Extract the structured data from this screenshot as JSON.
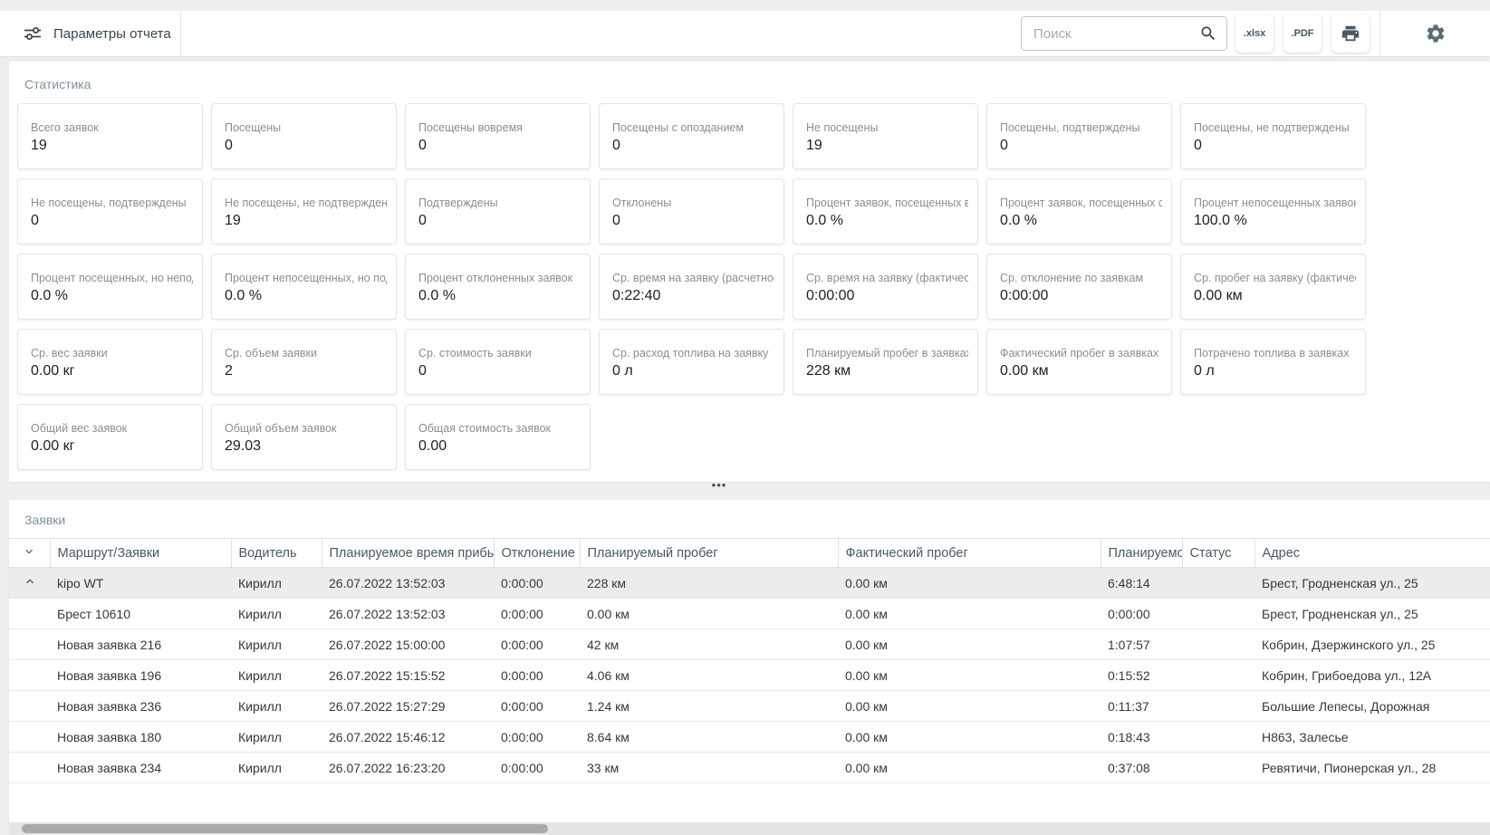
{
  "toolbar": {
    "params_label": "Параметры отчета",
    "search_placeholder": "Поиск",
    "xlsx_label": ".xlsx",
    "pdf_label": ".PDF"
  },
  "stats": {
    "title": "Статистика",
    "cards": [
      {
        "label": "Всего заявок",
        "value": "19"
      },
      {
        "label": "Посещены",
        "value": "0"
      },
      {
        "label": "Посещены вовремя",
        "value": "0"
      },
      {
        "label": "Посещены с опозданием",
        "value": "0"
      },
      {
        "label": "Не посещены",
        "value": "19"
      },
      {
        "label": "Посещены, подтверждены",
        "value": "0"
      },
      {
        "label": "Посещены, не подтверждены",
        "value": "0"
      },
      {
        "label": "Не посещены, подтверждены",
        "value": "0"
      },
      {
        "label": "Не посещены, не подтверждены",
        "value": "19"
      },
      {
        "label": "Подтверждены",
        "value": "0"
      },
      {
        "label": "Отклонены",
        "value": "0"
      },
      {
        "label": "Процент заявок, посещенных в...",
        "value": "0.0 %"
      },
      {
        "label": "Процент заявок, посещенных с ...",
        "value": "0.0 %"
      },
      {
        "label": "Процент непосещенных заявок",
        "value": "100.0 %"
      },
      {
        "label": "Процент посещенных, но непод...",
        "value": "0.0 %"
      },
      {
        "label": "Процент непосещенных, но под...",
        "value": "0.0 %"
      },
      {
        "label": "Процент отклоненных заявок",
        "value": "0.0 %"
      },
      {
        "label": "Ср. время на заявку (расчетное)",
        "value": "0:22:40"
      },
      {
        "label": "Ср. время на заявку (фактичес...",
        "value": "0:00:00"
      },
      {
        "label": "Ср. отклонение по заявкам",
        "value": "0:00:00"
      },
      {
        "label": "Ср. пробег на заявку (фактичес...",
        "value": "0.00 км"
      },
      {
        "label": "Ср. вес заявки",
        "value": "0.00 кг"
      },
      {
        "label": "Ср. объем заявки",
        "value": "2"
      },
      {
        "label": "Ср. стоимость заявки",
        "value": "0"
      },
      {
        "label": "Ср. расход топлива на заявку",
        "value": "0 л"
      },
      {
        "label": "Планируемый пробег в заявках",
        "value": "228 км"
      },
      {
        "label": "Фактический пробег в заявках",
        "value": "0.00 км"
      },
      {
        "label": "Потрачено топлива в заявках",
        "value": "0 л"
      },
      {
        "label": "Общий вес заявок",
        "value": "0.00 кг"
      },
      {
        "label": "Общий объем заявок",
        "value": "29.03"
      },
      {
        "label": "Общая стоимость заявок",
        "value": "0.00"
      }
    ]
  },
  "requests": {
    "title": "Заявки",
    "columns": [
      "Маршрут/Заявки",
      "Водитель",
      "Планируемое время прибы...",
      "Отклонение",
      "Планируемый пробег",
      "Фактический пробег",
      "Планируемо...",
      "Статус",
      "Адрес"
    ],
    "rows": [
      {
        "expanded": true,
        "route": "kipo WT",
        "driver": "Кирилл",
        "planned_time": "26.07.2022 13:52:03",
        "deviation": "0:00:00",
        "planned_distance": "228 км",
        "actual_distance": "0.00 км",
        "planned_duration": "6:48:14",
        "status": "",
        "address": "Брест, Гродненская ул., 25"
      },
      {
        "expanded": false,
        "route": "Брест 10610",
        "driver": "Кирилл",
        "planned_time": "26.07.2022 13:52:03",
        "deviation": "0:00:00",
        "planned_distance": "0.00 км",
        "actual_distance": "0.00 км",
        "planned_duration": "0:00:00",
        "status": "",
        "address": "Брест, Гродненская ул., 25"
      },
      {
        "expanded": false,
        "route": "Новая заявка 216",
        "driver": "Кирилл",
        "planned_time": "26.07.2022 15:00:00",
        "deviation": "0:00:00",
        "planned_distance": "42 км",
        "actual_distance": "0.00 км",
        "planned_duration": "1:07:57",
        "status": "",
        "address": "Кобрин, Дзержинского ул., 25"
      },
      {
        "expanded": false,
        "route": "Новая заявка 196",
        "driver": "Кирилл",
        "planned_time": "26.07.2022 15:15:52",
        "deviation": "0:00:00",
        "planned_distance": "4.06 км",
        "actual_distance": "0.00 км",
        "planned_duration": "0:15:52",
        "status": "",
        "address": "Кобрин, Грибоедова ул., 12А"
      },
      {
        "expanded": false,
        "route": "Новая заявка 236",
        "driver": "Кирилл",
        "planned_time": "26.07.2022 15:27:29",
        "deviation": "0:00:00",
        "planned_distance": "1.24 км",
        "actual_distance": "0.00 км",
        "planned_duration": "0:11:37",
        "status": "",
        "address": "Большие Лепесы, Дорожная"
      },
      {
        "expanded": false,
        "route": "Новая заявка 180",
        "driver": "Кирилл",
        "planned_time": "26.07.2022 15:46:12",
        "deviation": "0:00:00",
        "planned_distance": "8.64 км",
        "actual_distance": "0.00 км",
        "planned_duration": "0:18:43",
        "status": "",
        "address": "Н863, Залесье"
      },
      {
        "expanded": false,
        "route": "Новая заявка 234",
        "driver": "Кирилл",
        "planned_time": "26.07.2022 16:23:20",
        "deviation": "0:00:00",
        "planned_distance": "33 км",
        "actual_distance": "0.00 км",
        "planned_duration": "0:37:08",
        "status": "",
        "address": "Ревятичи, Пионерская ул., 28"
      }
    ]
  },
  "splitter": {
    "dots": "•••"
  },
  "colors": {
    "accent_slate": "#455a64",
    "section_title": "#7e909c",
    "page_bg": "#edeef0",
    "card_border": "#e5e5e5",
    "row_highlight": "#ececec"
  }
}
